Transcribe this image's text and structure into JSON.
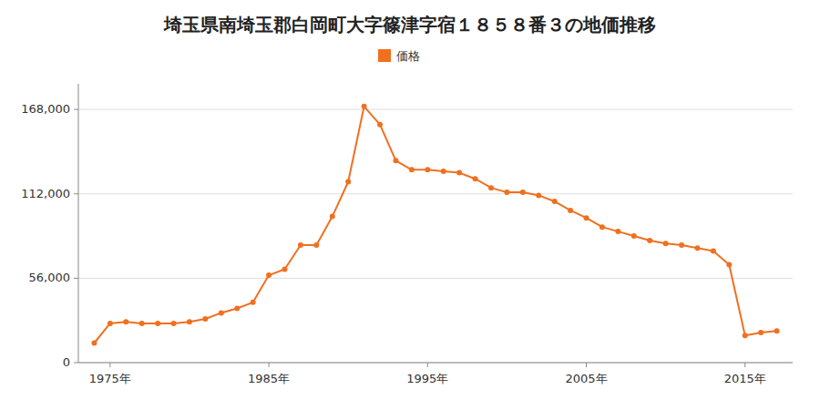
{
  "chart_data": {
    "type": "line",
    "title": "埼玉県南埼玉郡白岡町大字篠津字宿１８５８番３の地価推移",
    "x": [
      1974,
      1975,
      1976,
      1977,
      1978,
      1979,
      1980,
      1981,
      1982,
      1983,
      1984,
      1985,
      1986,
      1987,
      1988,
      1989,
      1990,
      1991,
      1992,
      1993,
      1994,
      1995,
      1996,
      1997,
      1998,
      1999,
      2000,
      2001,
      2002,
      2003,
      2004,
      2005,
      2006,
      2007,
      2008,
      2009,
      2010,
      2011,
      2012,
      2013,
      2014,
      2015,
      2016,
      2017
    ],
    "series": [
      {
        "name": "価格",
        "color": "#f07020",
        "marker": "circle",
        "line_style": "solid",
        "values": [
          13000,
          26000,
          27000,
          26000,
          26000,
          26000,
          27000,
          29000,
          33000,
          36000,
          40000,
          58000,
          62000,
          78000,
          78000,
          97000,
          120000,
          170000,
          158000,
          134000,
          128000,
          128000,
          127000,
          126000,
          122000,
          116000,
          113000,
          113000,
          111000,
          107000,
          101000,
          96000,
          90000,
          87000,
          84000,
          81000,
          79000,
          78000,
          76000,
          74000,
          65000,
          18000,
          20000,
          21000
        ]
      }
    ],
    "xlim": [
      1973,
      2018
    ],
    "xticks": [
      {
        "value": 1975,
        "label": "1975年"
      },
      {
        "value": 1985,
        "label": "1985年"
      },
      {
        "value": 1995,
        "label": "1995年"
      },
      {
        "value": 2005,
        "label": "2005年"
      },
      {
        "value": 2015,
        "label": "2015年"
      }
    ],
    "ylim": [
      0,
      185000
    ],
    "yticks": [
      0,
      {
        "value": 56000,
        "label": "56,000"
      },
      {
        "value": 112000,
        "label": "112,000"
      },
      {
        "value": 168000,
        "label": "168,000"
      }
    ],
    "grid": true,
    "legend": "top"
  }
}
